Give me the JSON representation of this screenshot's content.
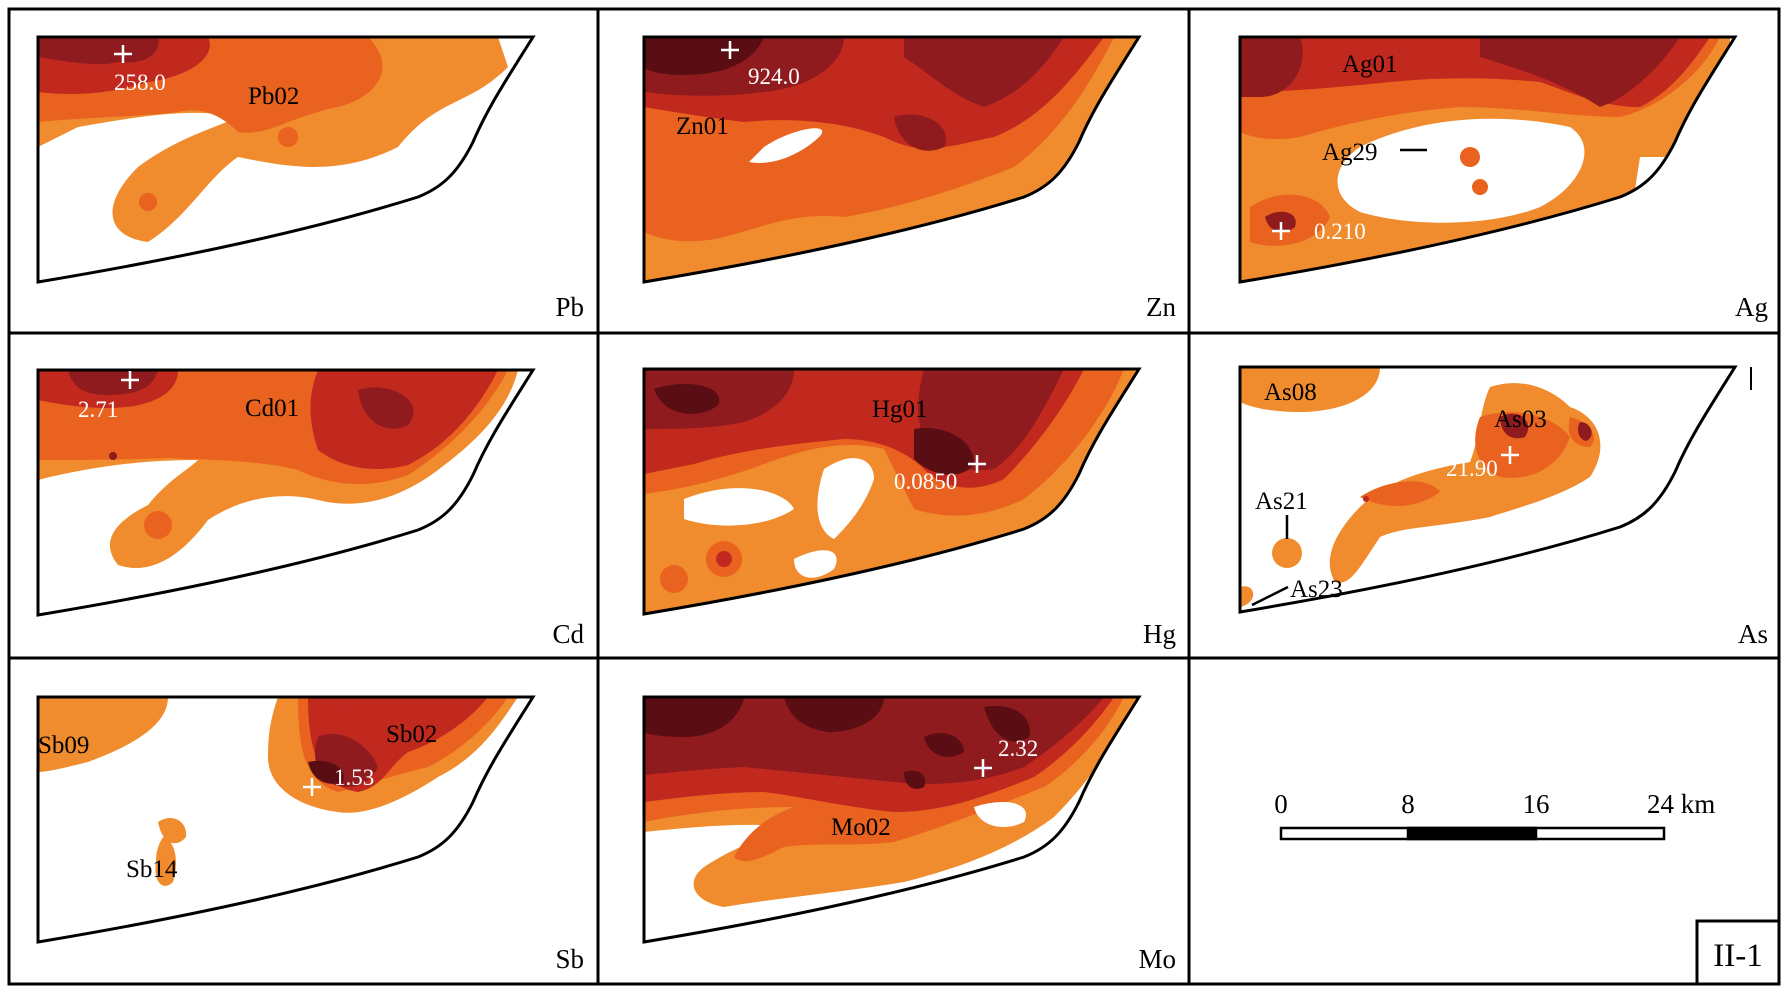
{
  "colors": {
    "class1": "#f08c2e",
    "class2": "#e9621f",
    "class3": "#c1281e",
    "class4": "#8f1b1f",
    "class5": "#5a0d12",
    "frame": "#000000",
    "background": "#ffffff"
  },
  "panels": [
    {
      "element": "Pb",
      "labels": [
        "258.0",
        "Pb02"
      ]
    },
    {
      "element": "Zn",
      "labels": [
        "924.0",
        "Zn01"
      ]
    },
    {
      "element": "Ag",
      "labels": [
        "Ag01",
        "Ag29",
        "0.210"
      ]
    },
    {
      "element": "Cd",
      "labels": [
        "2.71",
        "Cd01"
      ]
    },
    {
      "element": "Hg",
      "labels": [
        "Hg01",
        "0.0850"
      ]
    },
    {
      "element": "As",
      "labels": [
        "As08",
        "As03",
        "21.90",
        "As21",
        "As23"
      ]
    },
    {
      "element": "Sb",
      "labels": [
        "Sb09",
        "Sb02",
        "1.53",
        "Sb14"
      ]
    },
    {
      "element": "Mo",
      "labels": [
        "2.32",
        "Mo02"
      ]
    }
  ],
  "scale_bar": {
    "ticks": [
      "0",
      "8",
      "16",
      "24 km"
    ]
  },
  "map_id": "II-1"
}
